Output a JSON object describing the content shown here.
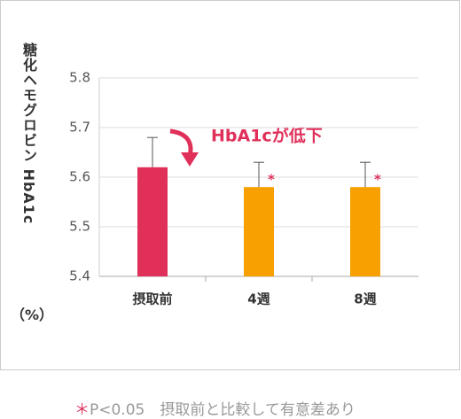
{
  "chart_data": {
    "type": "bar",
    "y_label": "糖化ヘモグロビン HbA1c",
    "y_label_unit": "（%）",
    "categories": [
      "摂取前",
      "4週",
      "8週"
    ],
    "values": [
      5.62,
      5.58,
      5.58
    ],
    "errors": [
      0.06,
      0.05,
      0.05
    ],
    "colors": [
      "#e0305a",
      "#f7a000",
      "#f7a000"
    ],
    "significance": [
      null,
      "*",
      "*"
    ],
    "significance_color": "#e0305a",
    "annotation": "HbA1cが低下",
    "ylim": [
      5.4,
      5.8
    ],
    "yticks": [
      5.4,
      5.5,
      5.6,
      5.7,
      5.8
    ],
    "grid": true,
    "footnote_marker": "＊",
    "footnote": "P<0.05　摂取前と比較して有意差あり"
  }
}
